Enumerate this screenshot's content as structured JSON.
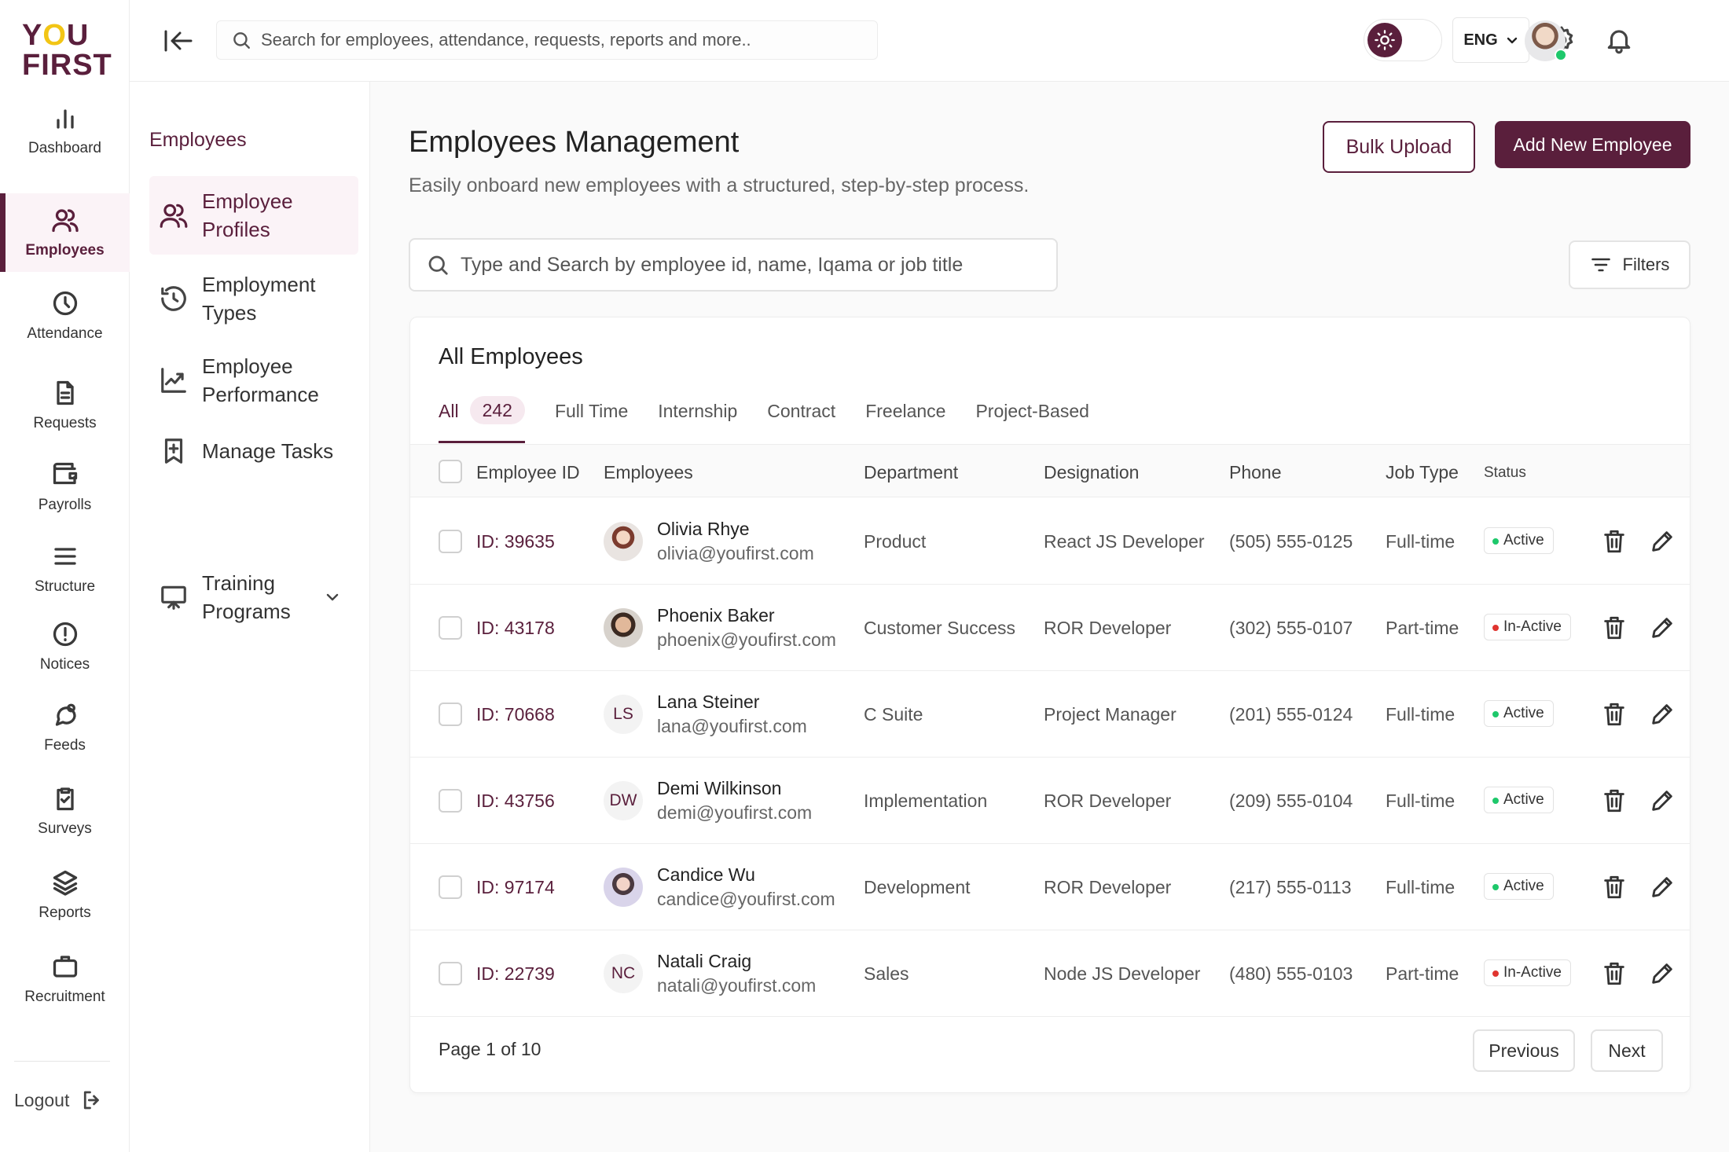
{
  "brand": {
    "logo_line1": "YOU",
    "logo_line2": "FIRST"
  },
  "rail": {
    "items": [
      {
        "label": "Dashboard",
        "icon": "bar-chart-icon"
      },
      {
        "label": "Employees",
        "icon": "users-icon"
      },
      {
        "label": "Attendance",
        "icon": "clock-icon"
      },
      {
        "label": "Requests",
        "icon": "document-icon"
      },
      {
        "label": "Payrolls",
        "icon": "wallet-icon"
      },
      {
        "label": "Structure",
        "icon": "menu-lines-icon"
      },
      {
        "label": "Notices",
        "icon": "alert-circle-icon"
      },
      {
        "label": "Feeds",
        "icon": "chat-bubble-icon"
      },
      {
        "label": "Surveys",
        "icon": "clipboard-check-icon"
      },
      {
        "label": "Reports",
        "icon": "layers-icon"
      },
      {
        "label": "Recruitment",
        "icon": "briefcase-icon"
      }
    ],
    "active": "Employees",
    "logout_label": "Logout"
  },
  "topbar": {
    "search_placeholder": "Search for employees, attendance, requests, reports and more..",
    "language": "ENG"
  },
  "subsidebar": {
    "title": "Employees",
    "items": [
      {
        "label": "Employee Profiles",
        "active": true
      },
      {
        "label": "Employment Types"
      },
      {
        "label": "Employee Performance"
      },
      {
        "label": "Manage Tasks"
      },
      {
        "label": "Training Programs",
        "has_submenu": true
      }
    ]
  },
  "main": {
    "title": "Employees Management",
    "subtitle": "Easily onboard new employees with a structured, step-by-step process.",
    "bulk_upload_label": "Bulk Upload",
    "add_employee_label": "Add New Employee",
    "search_placeholder": "Type and Search by employee id, name, Iqama or job title",
    "filters_label": "Filters"
  },
  "table": {
    "title": "All Employees",
    "tabs": [
      {
        "label": "All",
        "count": "242",
        "active": true
      },
      {
        "label": "Full Time"
      },
      {
        "label": "Internship"
      },
      {
        "label": "Contract"
      },
      {
        "label": "Freelance"
      },
      {
        "label": "Project-Based"
      }
    ],
    "columns": [
      "Employee ID",
      "Employees",
      "Department",
      "Designation",
      "Phone",
      "Job Type",
      "Status"
    ],
    "rows": [
      {
        "id": "ID: 39635",
        "name": "Olivia Rhye",
        "email": "olivia@youfirst.com",
        "initials": "",
        "department": "Product",
        "designation": "React JS Developer",
        "phone": "(505) 555-0125",
        "job_type": "Full-time",
        "status": "Active"
      },
      {
        "id": "ID: 43178",
        "name": "Phoenix Baker",
        "email": "phoenix@youfirst.com",
        "initials": "",
        "department": "Customer Success",
        "designation": "ROR Developer",
        "phone": "(302) 555-0107",
        "job_type": "Part-time",
        "status": "In-Active"
      },
      {
        "id": "ID: 70668",
        "name": "Lana Steiner",
        "email": "lana@youfirst.com",
        "initials": "LS",
        "department": "C Suite",
        "designation": "Project Manager",
        "phone": "(201) 555-0124",
        "job_type": "Full-time",
        "status": "Active"
      },
      {
        "id": "ID: 43756",
        "name": "Demi Wilkinson",
        "email": "demi@youfirst.com",
        "initials": "DW",
        "department": "Implementation",
        "designation": "ROR Developer",
        "phone": "(209) 555-0104",
        "job_type": "Full-time",
        "status": "Active"
      },
      {
        "id": "ID: 97174",
        "name": "Candice Wu",
        "email": "candice@youfirst.com",
        "initials": "",
        "department": "Development",
        "designation": "ROR Developer",
        "phone": "(217) 555-0113",
        "job_type": "Full-time",
        "status": "Active"
      },
      {
        "id": "ID: 22739",
        "name": "Natali Craig",
        "email": "natali@youfirst.com",
        "initials": "NC",
        "department": "Sales",
        "designation": "Node JS Developer",
        "phone": "(480) 555-0103",
        "job_type": "Part-time",
        "status": "In-Active"
      }
    ],
    "pagination": {
      "label": "Page 1 of 10",
      "previous_label": "Previous",
      "next_label": "Next"
    }
  },
  "colors": {
    "brand": "#5a1f3c",
    "active_dot": "#1ec86b",
    "inactive_dot": "#e0342f",
    "accent_yellow": "#f2c515"
  }
}
